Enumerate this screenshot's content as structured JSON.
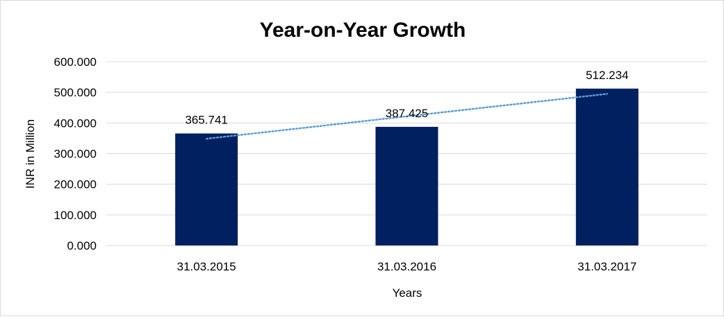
{
  "chart_data": {
    "type": "bar",
    "title": "Year-on-Year Growth",
    "xlabel": "Years",
    "ylabel": "INR in Million",
    "categories": [
      "31.03.2015",
      "31.03.2016",
      "31.03.2017"
    ],
    "values": [
      365.741,
      387.425,
      512.234
    ],
    "value_labels": [
      "365.741",
      "387.425",
      "512.234"
    ],
    "yticks": [
      "0.000",
      "100.000",
      "200.000",
      "300.000",
      "400.000",
      "500.000",
      "600.000"
    ],
    "ylim": [
      0,
      600
    ],
    "grid": true,
    "legend": "none",
    "trendline": "linear",
    "colors": {
      "bar": "#002060",
      "trendline": "#5b9bd5",
      "grid": "#d9d9d9",
      "text": "#000000"
    }
  }
}
